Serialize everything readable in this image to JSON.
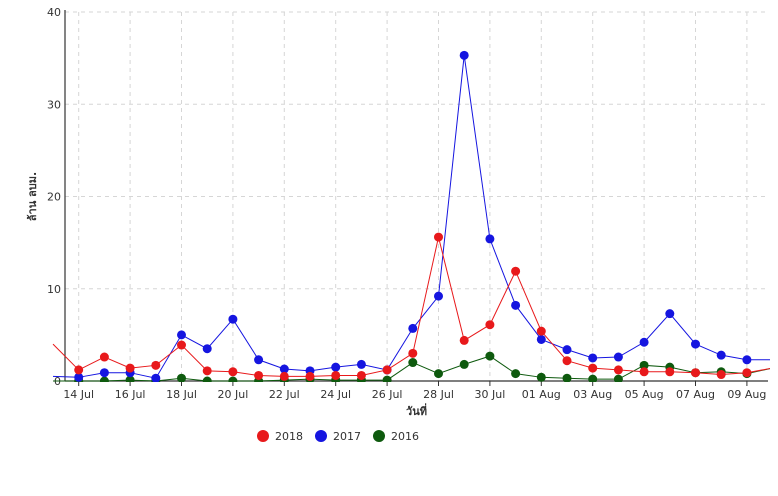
{
  "chart_data": {
    "type": "line",
    "xlabel": "วันที่",
    "ylabel": "ล้าน ลบม.",
    "ylim": [
      0,
      40
    ],
    "yticks": [
      0,
      10,
      20,
      30,
      40
    ],
    "grid": true,
    "legend_position": "bottom-center",
    "categories": [
      "13 Jul",
      "14 Jul",
      "15 Jul",
      "16 Jul",
      "17 Jul",
      "18 Jul",
      "19 Jul",
      "20 Jul",
      "21 Jul",
      "22 Jul",
      "23 Jul",
      "24 Jul",
      "25 Jul",
      "26 Jul",
      "27 Jul",
      "28 Jul",
      "29 Jul",
      "30 Jul",
      "31 Jul",
      "01 Aug",
      "02 Aug",
      "03 Aug",
      "04 Aug",
      "05 Aug",
      "06 Aug",
      "07 Aug",
      "08 Aug",
      "09 Aug",
      "10 Aug"
    ],
    "xtick_labels": [
      "14 Jul",
      "16 Jul",
      "18 Jul",
      "20 Jul",
      "22 Jul",
      "24 Jul",
      "26 Jul",
      "28 Jul",
      "30 Jul",
      "01 Aug",
      "03 Aug",
      "05 Aug",
      "07 Aug",
      "09 Aug"
    ],
    "series": [
      {
        "name": "2018",
        "color": "#e8191b",
        "values": [
          4.0,
          1.2,
          2.6,
          1.4,
          1.7,
          3.9,
          1.1,
          1.0,
          0.6,
          0.5,
          0.5,
          0.6,
          0.6,
          1.2,
          3.0,
          15.6,
          4.4,
          6.1,
          11.9,
          5.4,
          2.2,
          1.4,
          1.2,
          1.0,
          1.0,
          0.9,
          0.7,
          0.9,
          1.4
        ],
        "markers": [
          false,
          true,
          true,
          true,
          true,
          true,
          true,
          true,
          true,
          true,
          true,
          true,
          true,
          true,
          true,
          true,
          true,
          true,
          true,
          true,
          true,
          true,
          true,
          true,
          true,
          true,
          true,
          true,
          false
        ]
      },
      {
        "name": "2017",
        "color": "#1515e0",
        "values": [
          0.5,
          0.4,
          0.9,
          0.9,
          0.3,
          5.0,
          3.5,
          6.7,
          2.3,
          1.3,
          1.1,
          1.5,
          1.8,
          1.2,
          5.7,
          9.2,
          35.3,
          15.4,
          8.2,
          4.5,
          3.4,
          2.5,
          2.6,
          4.2,
          7.3,
          4.0,
          2.8,
          2.3,
          2.3
        ],
        "markers": [
          false,
          true,
          true,
          true,
          true,
          true,
          true,
          true,
          true,
          true,
          true,
          true,
          true,
          true,
          true,
          true,
          true,
          true,
          true,
          true,
          true,
          true,
          true,
          true,
          true,
          true,
          true,
          true,
          false
        ]
      },
      {
        "name": "2016",
        "color": "#0e5a0e",
        "values": [
          0.0,
          0.0,
          0.0,
          0.1,
          0.0,
          0.3,
          0.0,
          0.0,
          0.0,
          0.1,
          0.2,
          0.1,
          0.1,
          0.1,
          2.0,
          0.8,
          1.8,
          2.7,
          0.8,
          0.4,
          0.3,
          0.2,
          0.2,
          1.7,
          1.5,
          0.9,
          1.0,
          0.8,
          1.4
        ],
        "markers": [
          false,
          true,
          true,
          true,
          true,
          true,
          true,
          true,
          true,
          true,
          true,
          true,
          true,
          true,
          true,
          true,
          true,
          true,
          true,
          true,
          true,
          true,
          true,
          true,
          true,
          true,
          true,
          true,
          false
        ]
      }
    ]
  }
}
